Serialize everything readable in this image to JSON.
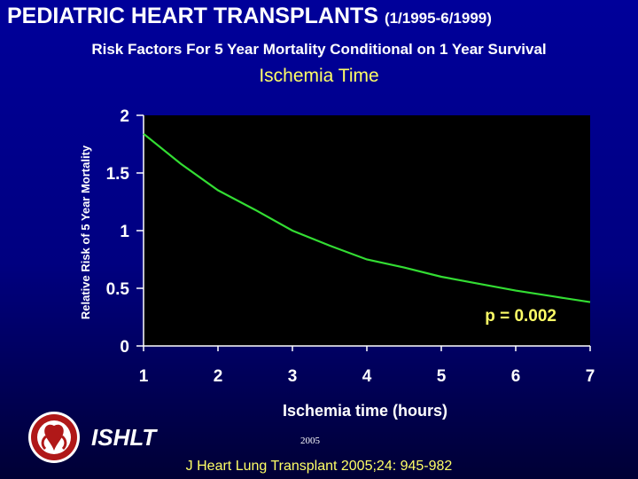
{
  "header": {
    "title": "PEDIATRIC HEART TRANSPLANTS",
    "title_period": "(1/1995-6/1999)",
    "subtitle": "Risk Factors For 5 Year Mortality Conditional on 1 Year Survival"
  },
  "footer": {
    "organization": "ISHLT",
    "year": "2005",
    "citation": "J Heart Lung Transplant 2005;24: 945-982"
  },
  "colors": {
    "background": "#000080",
    "plot_area": "#000000",
    "line": "#33dd33",
    "accent_text": "#ffff66"
  },
  "chart_data": {
    "type": "line",
    "title": "Ischemia Time",
    "xlabel": "Ischemia time (hours)",
    "ylabel": "Relative Risk of 5 Year Mortality",
    "xlim": [
      1,
      7
    ],
    "ylim": [
      0,
      2
    ],
    "x_ticks": [
      "1",
      "2",
      "3",
      "4",
      "5",
      "6",
      "7"
    ],
    "y_ticks": [
      "0",
      "0.5",
      "1",
      "1.5",
      "2"
    ],
    "grid": false,
    "legend": "none",
    "annotation": "p = 0.002",
    "series": [
      {
        "x": [
          1,
          1.5,
          2,
          2.5,
          3,
          3.5,
          4,
          4.5,
          5,
          5.5,
          6,
          6.5,
          7
        ],
        "y": [
          1.84,
          1.58,
          1.35,
          1.18,
          1.0,
          0.87,
          0.75,
          0.68,
          0.6,
          0.54,
          0.48,
          0.43,
          0.38
        ]
      }
    ]
  }
}
